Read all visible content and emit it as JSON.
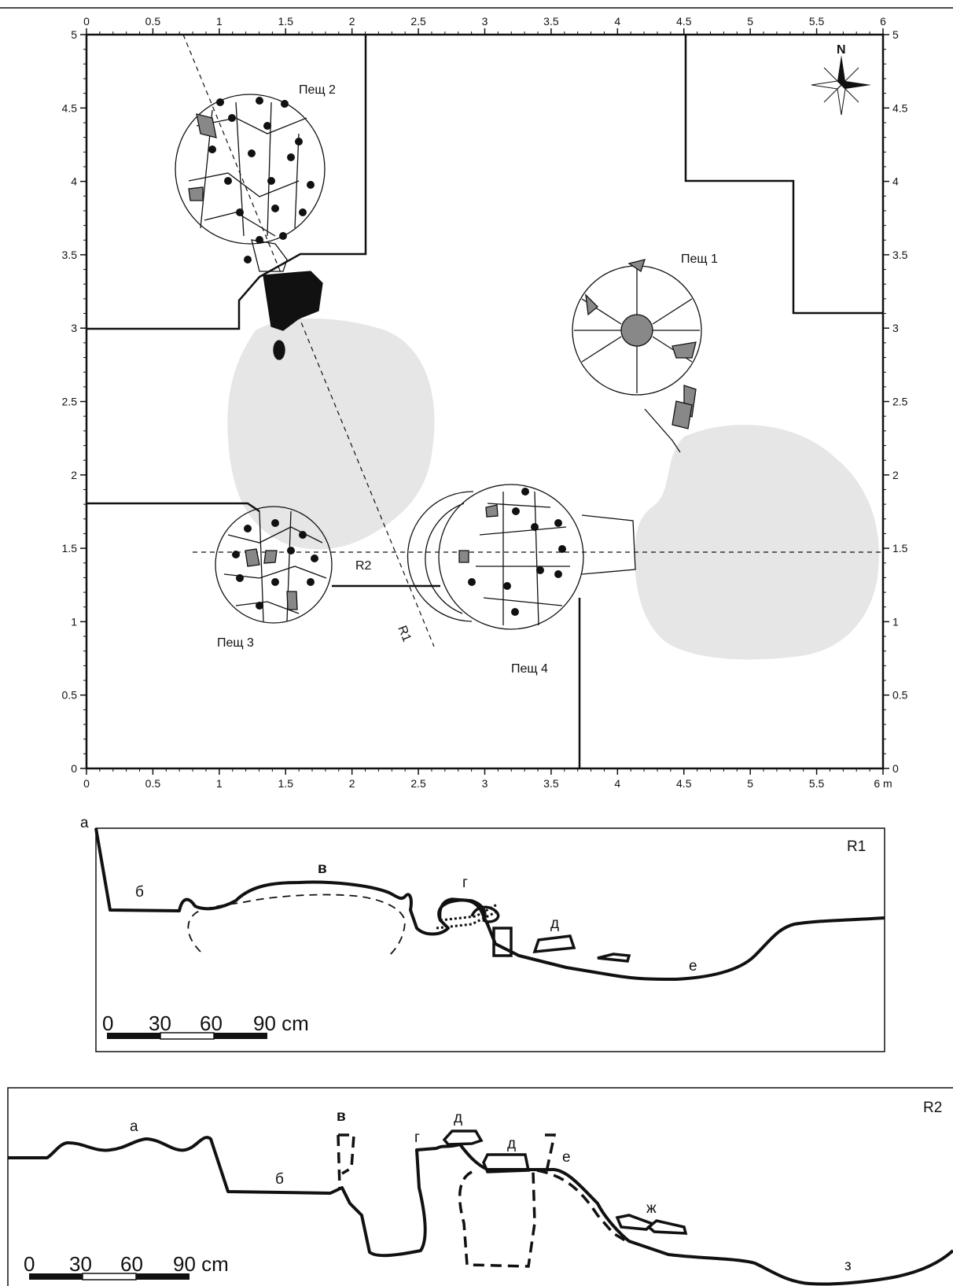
{
  "plan": {
    "x_ticks": [
      "0",
      "0.5",
      "1",
      "1.5",
      "2",
      "2.5",
      "3",
      "3.5",
      "4",
      "4.5",
      "5",
      "5.5",
      "6"
    ],
    "y_ticks": [
      "0",
      "0.5",
      "1",
      "1.5",
      "2",
      "2.5",
      "3",
      "3.5",
      "4",
      "4.5",
      "5"
    ],
    "unit": "m",
    "north": "N",
    "ovens": {
      "p1": "Пещ 1",
      "p2": "Пещ 2",
      "p3": "Пещ 3",
      "p4": "Пещ 4"
    },
    "section_lines": {
      "r1": "R1",
      "r2": "R2"
    }
  },
  "section_r1": {
    "title": "R1",
    "labels": {
      "a": "а",
      "b": "б",
      "v": "в",
      "g": "г",
      "d": "д",
      "e": "е"
    },
    "scale": [
      "0",
      "30",
      "60",
      "90 cm"
    ]
  },
  "section_r2": {
    "title": "R2",
    "labels": {
      "a": "а",
      "b": "б",
      "v": "в",
      "g": "г",
      "d1": "д",
      "d2": "д",
      "e": "е",
      "zh": "ж",
      "z": "з"
    },
    "scale": [
      "0",
      "30",
      "60",
      "90 cm"
    ]
  },
  "colors": {
    "shade": "#e6e6e6",
    "stone_dark": "#888888",
    "ink": "#111111"
  }
}
